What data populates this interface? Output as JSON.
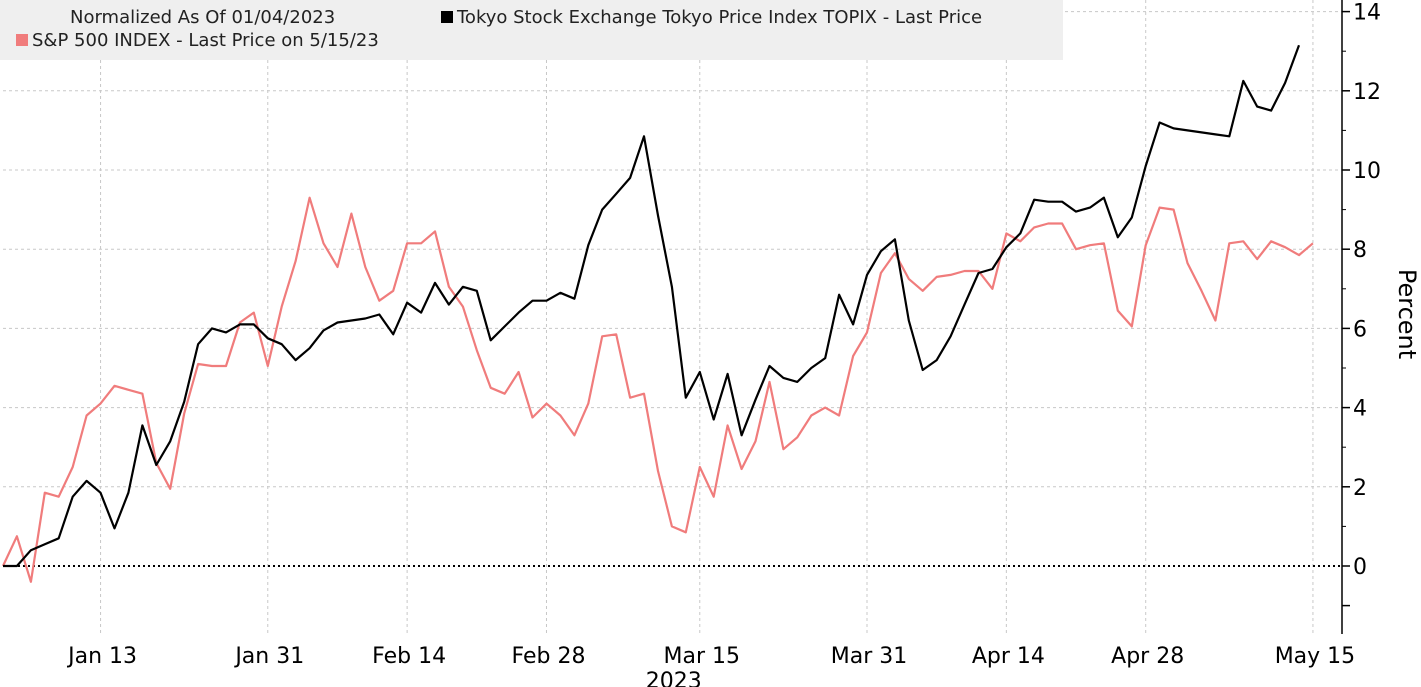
{
  "chart_data": {
    "type": "line",
    "legend": {
      "note": "Normalized As Of 01/04/2023",
      "placement": "top-left"
    },
    "series": [
      {
        "name": "Tokyo Stock Exchange Tokyo Price Index TOPIX - Last Price",
        "color": "#000000",
        "values": [
          0.0,
          0.0,
          0.4,
          0.55,
          0.7,
          1.75,
          2.15,
          1.85,
          0.95,
          1.85,
          3.55,
          2.55,
          3.15,
          4.15,
          5.6,
          6.0,
          5.9,
          6.1,
          6.1,
          5.75,
          5.6,
          5.2,
          5.5,
          5.95,
          6.15,
          6.2,
          6.25,
          6.35,
          5.85,
          6.65,
          6.4,
          7.15,
          6.6,
          7.05,
          6.95,
          5.7,
          6.05,
          6.4,
          6.7,
          6.7,
          6.9,
          6.75,
          8.1,
          9.0,
          9.4,
          9.8,
          10.85,
          8.85,
          7.05,
          4.25,
          4.9,
          3.7,
          4.85,
          3.3,
          4.2,
          5.05,
          4.75,
          4.65,
          5.0,
          5.25,
          6.85,
          6.1,
          7.35,
          7.95,
          8.25,
          6.2,
          4.95,
          5.2,
          5.8,
          6.6,
          7.4,
          7.5,
          8.05,
          8.4,
          9.25,
          9.2,
          9.2,
          8.95,
          9.05,
          9.3,
          8.3,
          8.8,
          10.1,
          11.2,
          11.05,
          11.0,
          10.95,
          10.9,
          10.85,
          12.25,
          11.6,
          11.5,
          12.2,
          13.15
        ]
      },
      {
        "name": "S&P 500 INDEX - Last Price on 5/15/23",
        "color": "#f07c7c",
        "values": [
          0.0,
          0.75,
          -0.4,
          1.85,
          1.75,
          2.5,
          3.8,
          4.1,
          4.55,
          4.45,
          4.35,
          2.6,
          1.95,
          3.85,
          5.1,
          5.05,
          5.05,
          6.15,
          6.4,
          5.05,
          6.55,
          7.7,
          9.3,
          8.15,
          7.55,
          8.9,
          7.55,
          6.7,
          6.95,
          8.15,
          8.15,
          8.45,
          7.05,
          6.55,
          5.45,
          4.5,
          4.35,
          4.9,
          3.75,
          4.1,
          3.8,
          3.3,
          4.1,
          5.8,
          5.85,
          4.25,
          4.35,
          2.4,
          1.0,
          0.85,
          2.5,
          1.75,
          3.55,
          2.45,
          3.15,
          4.65,
          2.95,
          3.25,
          3.8,
          4.0,
          3.8,
          5.3,
          5.9,
          7.4,
          7.9,
          7.25,
          6.95,
          7.3,
          7.35,
          7.45,
          7.45,
          7.0,
          8.4,
          8.2,
          8.55,
          8.65,
          8.65,
          8.0,
          8.1,
          8.15,
          6.45,
          6.05,
          8.1,
          9.05,
          9.0,
          7.65,
          6.95,
          6.2,
          8.15,
          8.2,
          7.75,
          8.2,
          8.05,
          7.85,
          8.15
        ]
      }
    ],
    "x_ticks": [
      "Jan 13",
      "Jan 31",
      "Feb 14",
      "Feb 28",
      "Mar 15",
      "Mar 31",
      "Apr 14",
      "Apr 28",
      "May 15"
    ],
    "x_tick_index": [
      7,
      19,
      29,
      39,
      50,
      62,
      72,
      82,
      94
    ],
    "x_axis_year": "2023",
    "y_ticks": [
      0,
      2,
      4,
      6,
      8,
      10,
      12,
      14
    ],
    "ylim": [
      -1.75,
      14.3
    ],
    "ylabel": "Percent",
    "y_axis_side": "right",
    "grid": true,
    "zero_line": "dotted"
  }
}
